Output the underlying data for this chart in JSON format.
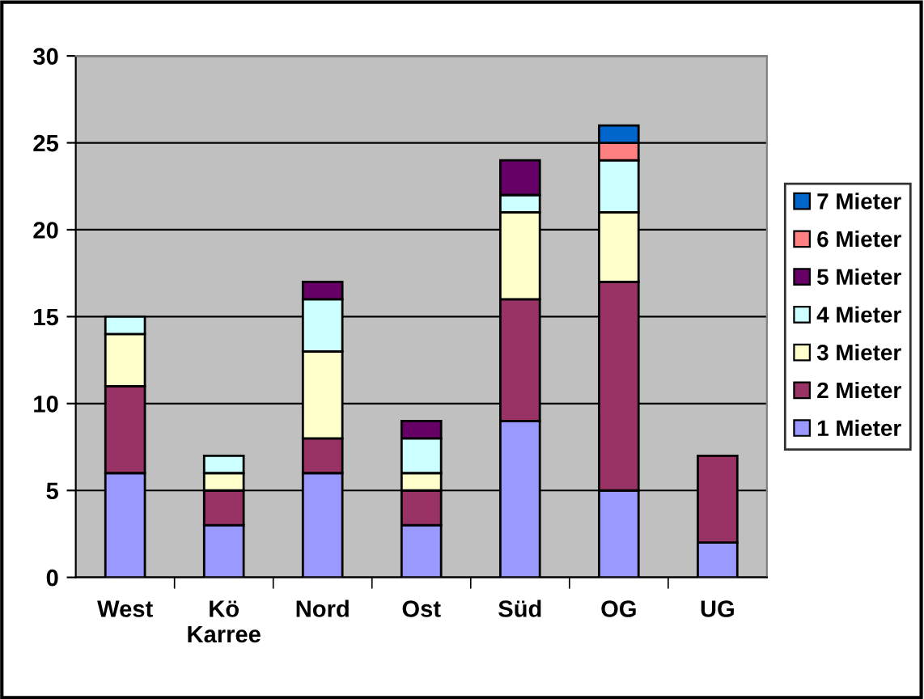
{
  "chart_data": {
    "type": "bar",
    "stacked": true,
    "categories": [
      "West",
      "Kö\nKarree",
      "Nord",
      "Ost",
      "Süd",
      "OG",
      "UG"
    ],
    "series": [
      {
        "name": "1 Mieter",
        "color": "#9999ff",
        "values": [
          6,
          3,
          6,
          3,
          9,
          5,
          2
        ]
      },
      {
        "name": "2 Mieter",
        "color": "#993366",
        "values": [
          5,
          2,
          2,
          2,
          7,
          12,
          5
        ]
      },
      {
        "name": "3 Mieter",
        "color": "#ffffcc",
        "values": [
          3,
          1,
          5,
          1,
          5,
          4,
          null
        ]
      },
      {
        "name": "4 Mieter",
        "color": "#ccffff",
        "values": [
          1,
          1,
          3,
          2,
          1,
          3,
          null
        ]
      },
      {
        "name": "5 Mieter",
        "color": "#660066",
        "values": [
          null,
          null,
          1,
          1,
          2,
          null,
          null
        ]
      },
      {
        "name": "6 Mieter",
        "color": "#ff8080",
        "values": [
          null,
          null,
          null,
          null,
          null,
          1,
          null
        ]
      },
      {
        "name": "7 Mieter",
        "color": "#0066cc",
        "values": [
          null,
          null,
          null,
          null,
          null,
          1,
          null
        ]
      }
    ],
    "ylim": [
      0,
      30
    ],
    "yticks": [
      0,
      5,
      10,
      15,
      20,
      25,
      30
    ],
    "grid": "y",
    "legend": "right"
  }
}
